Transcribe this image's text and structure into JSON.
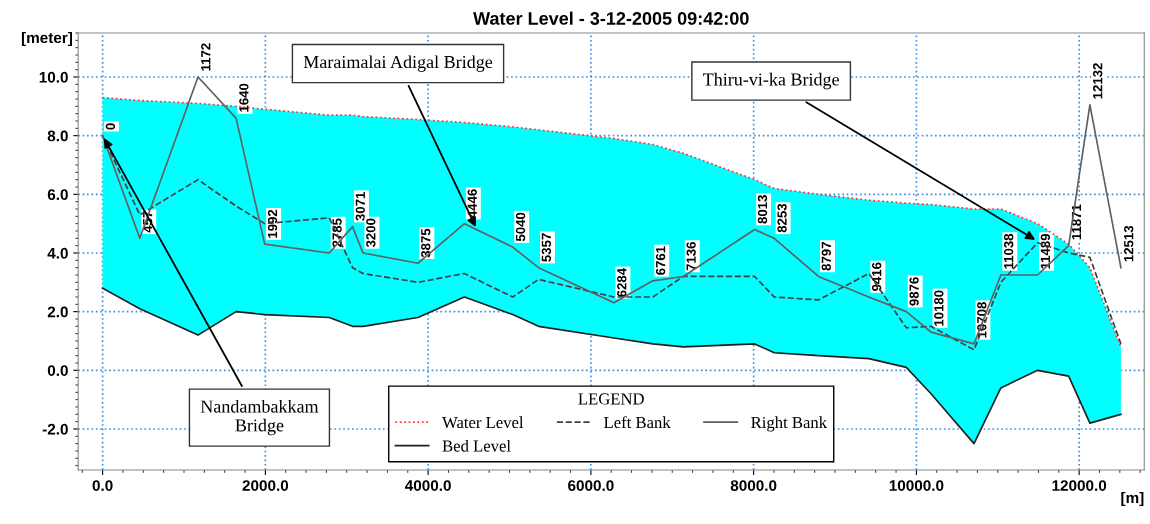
{
  "chart_data": {
    "type": "line",
    "title": "Water Level - 3-12-2005 09:42:00",
    "xlabel": "[m]",
    "ylabel": "[meter]",
    "legend_title": "LEGEND",
    "x": [
      0,
      457,
      1172,
      1640,
      1992,
      2785,
      3071,
      3200,
      3875,
      4446,
      5040,
      5357,
      6284,
      6761,
      7136,
      8013,
      8253,
      8797,
      9416,
      9876,
      10180,
      10708,
      11038,
      11489,
      11871,
      12132,
      12513
    ],
    "series": [
      {
        "name": "Water Level",
        "color": "#ff3030",
        "line_style": "dotted",
        "values": [
          9.3,
          9.2,
          9.1,
          9.0,
          8.9,
          8.7,
          8.7,
          8.65,
          8.55,
          8.45,
          8.3,
          8.2,
          7.9,
          7.7,
          7.4,
          6.5,
          6.2,
          6.0,
          5.8,
          5.7,
          5.65,
          5.5,
          5.5,
          5.0,
          4.3,
          3.5,
          0.8
        ],
        "lower": [
          2.8,
          2.1,
          1.2,
          2.0,
          1.9,
          1.8,
          1.5,
          1.5,
          1.8,
          2.5,
          1.9,
          1.5,
          1.1,
          0.9,
          0.8,
          0.9,
          0.6,
          0.5,
          0.4,
          0.1,
          -0.8,
          -2.5,
          -0.6,
          0.0,
          -0.2,
          -1.8,
          -1.5
        ],
        "upper": [
          9.3,
          9.2,
          9.1,
          9.0,
          8.9,
          8.7,
          8.7,
          8.65,
          8.55,
          8.45,
          8.3,
          8.2,
          7.9,
          7.7,
          7.4,
          6.5,
          6.2,
          6.0,
          5.8,
          5.7,
          5.65,
          5.5,
          5.5,
          5.0,
          4.3,
          3.5,
          0.8
        ]
      },
      {
        "name": "Bed Level",
        "color": "#202020",
        "line_style": "solid",
        "values": [
          2.8,
          2.1,
          1.2,
          2.0,
          1.9,
          1.8,
          1.5,
          1.5,
          1.8,
          2.5,
          1.9,
          1.5,
          1.1,
          0.9,
          0.8,
          0.9,
          0.6,
          0.5,
          0.4,
          0.1,
          -0.8,
          -2.5,
          -0.6,
          0.0,
          -0.2,
          -1.8,
          -1.5
        ]
      },
      {
        "name": "Left Bank",
        "color": "#404040",
        "line_style": "dashed",
        "values": [
          8.0,
          5.3,
          6.5,
          5.6,
          5.0,
          5.2,
          3.5,
          3.3,
          3.0,
          3.3,
          2.5,
          3.1,
          2.5,
          2.5,
          3.2,
          3.2,
          2.5,
          2.4,
          3.3,
          1.45,
          1.5,
          0.7,
          3.0,
          4.35,
          4.0,
          3.85,
          0.9
        ]
      },
      {
        "name": "Right Bank",
        "color": "#606060",
        "line_style": "solid",
        "values": [
          8.0,
          4.5,
          10.0,
          8.6,
          4.3,
          4.0,
          4.9,
          4.0,
          3.65,
          5.0,
          4.2,
          3.5,
          2.3,
          3.05,
          3.2,
          4.8,
          4.5,
          3.2,
          2.5,
          2.0,
          1.3,
          0.9,
          3.25,
          3.25,
          4.25,
          9.05,
          3.5
        ]
      }
    ],
    "annotations": [
      {
        "text": "0",
        "x": 0,
        "y": 8.0
      },
      {
        "text": "457",
        "x": 457,
        "y": 4.5
      },
      {
        "text": "1172",
        "x": 1172,
        "y": 10.0
      },
      {
        "text": "1640",
        "x": 1640,
        "y": 8.6
      },
      {
        "text": "1992",
        "x": 1992,
        "y": 4.3
      },
      {
        "text": "2785",
        "x": 2785,
        "y": 4.0
      },
      {
        "text": "3071",
        "x": 3071,
        "y": 4.9
      },
      {
        "text": "3200",
        "x": 3200,
        "y": 4.0
      },
      {
        "text": "3875",
        "x": 3875,
        "y": 3.65
      },
      {
        "text": "4446",
        "x": 4446,
        "y": 5.0
      },
      {
        "text": "5040",
        "x": 5040,
        "y": 4.2
      },
      {
        "text": "5357",
        "x": 5357,
        "y": 3.5
      },
      {
        "text": "6284",
        "x": 6284,
        "y": 2.3
      },
      {
        "text": "6761",
        "x": 6761,
        "y": 3.05
      },
      {
        "text": "7136",
        "x": 7136,
        "y": 3.2
      },
      {
        "text": "8013",
        "x": 8013,
        "y": 4.8
      },
      {
        "text": "8253",
        "x": 8253,
        "y": 4.5
      },
      {
        "text": "8797",
        "x": 8797,
        "y": 3.2
      },
      {
        "text": "9416",
        "x": 9416,
        "y": 2.5
      },
      {
        "text": "9876",
        "x": 9876,
        "y": 2.0
      },
      {
        "text": "10180",
        "x": 10180,
        "y": 1.3
      },
      {
        "text": "10708",
        "x": 10708,
        "y": 0.9
      },
      {
        "text": "11038",
        "x": 11038,
        "y": 3.25
      },
      {
        "text": "11489",
        "x": 11489,
        "y": 3.25
      },
      {
        "text": "11871",
        "x": 11871,
        "y": 4.25
      },
      {
        "text": "12132",
        "x": 12132,
        "y": 9.05
      },
      {
        "text": "12513",
        "x": 12513,
        "y": 3.5
      },
      {
        "text": "Nandambakkam\nBridge",
        "x": 0,
        "y": 8.0
      },
      {
        "text": "Maraimalai Adigal Bridge",
        "x": 4600,
        "y": 4.8
      },
      {
        "text": "Thiru-vi-ka Bridge",
        "x": 11489,
        "y": 4.4
      }
    ],
    "xlim": [
      -300,
      12800
    ],
    "ylim": [
      -3.4,
      11.5
    ],
    "xticks": [
      {
        "value": 0,
        "label": "0.0"
      },
      {
        "value": 2000,
        "label": "2000.0"
      },
      {
        "value": 4000,
        "label": "4000.0"
      },
      {
        "value": 6000,
        "label": "6000.0"
      },
      {
        "value": 8000,
        "label": "8000.0"
      },
      {
        "value": 10000,
        "label": "10000.0"
      },
      {
        "value": 12000,
        "label": "12000.0"
      }
    ],
    "yticks": [
      {
        "value": -2,
        "label": "-2.0"
      },
      {
        "value": 0,
        "label": "0.0"
      },
      {
        "value": 2,
        "label": "2.0"
      },
      {
        "value": 4,
        "label": "4.0"
      },
      {
        "value": 6,
        "label": "6.0"
      },
      {
        "value": 8,
        "label": "8.0"
      },
      {
        "value": 10,
        "label": "10.0"
      }
    ],
    "grid": true,
    "legend": "bottom"
  }
}
